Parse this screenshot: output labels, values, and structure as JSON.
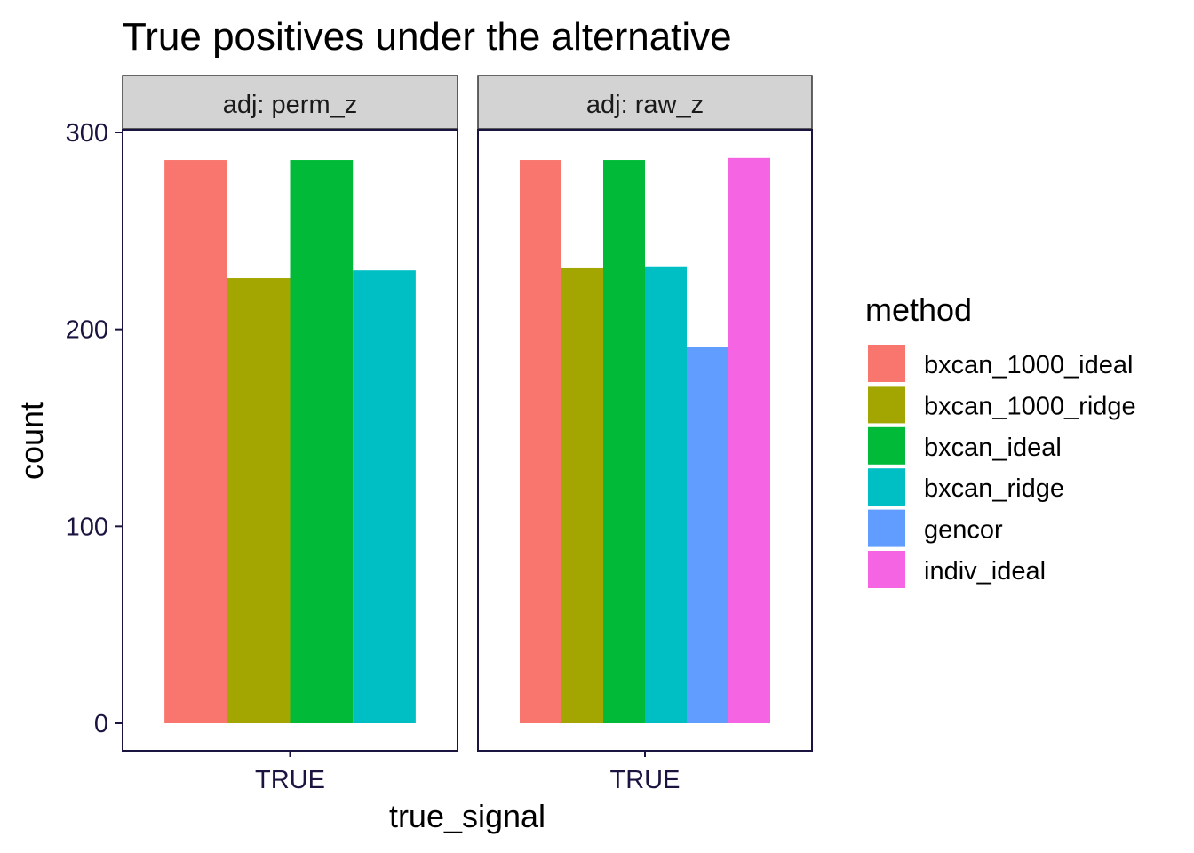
{
  "chart_data": {
    "type": "bar",
    "title": "True positives under the alternative",
    "xlabel": "true_signal",
    "ylabel": "count",
    "ylim": [
      -14,
      300
    ],
    "yticks": [
      0,
      100,
      200,
      300
    ],
    "legend": {
      "title": "method",
      "placement": "right",
      "entries": [
        {
          "name": "bxcan_1000_ideal",
          "color": "#F8766D"
        },
        {
          "name": "bxcan_1000_ridge",
          "color": "#A3A500"
        },
        {
          "name": "bxcan_ideal",
          "color": "#00BA38"
        },
        {
          "name": "bxcan_ridge",
          "color": "#00BFC4"
        },
        {
          "name": "gencor",
          "color": "#619CFF"
        },
        {
          "name": "indiv_ideal",
          "color": "#F564E3"
        }
      ]
    },
    "panels": [
      {
        "strip": "adj: perm_z",
        "category": "TRUE",
        "bars": [
          {
            "method": "bxcan_1000_ideal",
            "value": 286
          },
          {
            "method": "bxcan_1000_ridge",
            "value": 226
          },
          {
            "method": "bxcan_ideal",
            "value": 286
          },
          {
            "method": "bxcan_ridge",
            "value": 230
          }
        ]
      },
      {
        "strip": "adj: raw_z",
        "category": "TRUE",
        "bars": [
          {
            "method": "bxcan_1000_ideal",
            "value": 286
          },
          {
            "method": "bxcan_1000_ridge",
            "value": 231
          },
          {
            "method": "bxcan_ideal",
            "value": 286
          },
          {
            "method": "bxcan_ridge",
            "value": 232
          },
          {
            "method": "gencor",
            "value": 191
          },
          {
            "method": "indiv_ideal",
            "value": 287
          }
        ]
      }
    ],
    "grid": false
  }
}
